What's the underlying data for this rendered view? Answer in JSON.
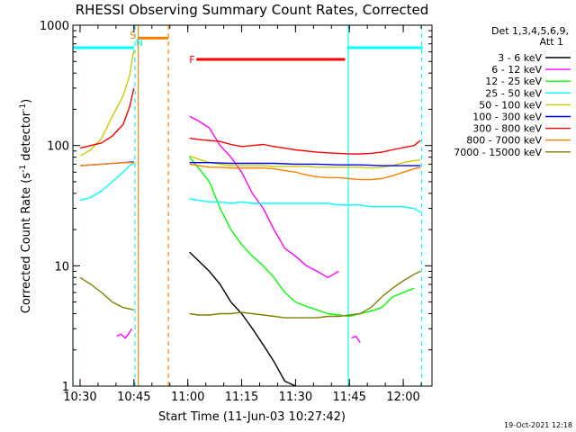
{
  "chart_data": {
    "type": "line",
    "title": "RHESSI Observing Summary Count Rates, Corrected",
    "xlabel": "Start Time (11-Jun-03 10:27:42)",
    "ylabel_main": "Corrected Count Rate (s",
    "ylabel_sup1": "-1",
    "ylabel_mid": " detector",
    "ylabel_sup2": "-1",
    "ylabel_end": ")",
    "y_scale": "log",
    "ylim": [
      1,
      1000
    ],
    "xlim_minutes": [
      10.4667,
      12.1333
    ],
    "y_ticks": [
      {
        "v": 1,
        "label": "1"
      },
      {
        "v": 10,
        "label": "10"
      },
      {
        "v": 100,
        "label": "100"
      },
      {
        "v": 1000,
        "label": "1000"
      }
    ],
    "x_ticks": [
      {
        "v": 10.5,
        "label": "10:30"
      },
      {
        "v": 10.75,
        "label": "10:45"
      },
      {
        "v": 11.0,
        "label": "11:00"
      },
      {
        "v": 11.25,
        "label": "11:15"
      },
      {
        "v": 11.5,
        "label": "11:30"
      },
      {
        "v": 11.75,
        "label": "11:45"
      },
      {
        "v": 12.0,
        "label": "12:00"
      }
    ],
    "legend_header": [
      "Det 1,3,4,5,6,9,",
      "Att 1"
    ],
    "legend_placement": "right",
    "series": [
      {
        "name": "3 - 6 keV",
        "color": "#000000",
        "points": [
          [
            11.008,
            13
          ],
          [
            11.05,
            11
          ],
          [
            11.1,
            9
          ],
          [
            11.15,
            7
          ],
          [
            11.2,
            5
          ],
          [
            11.25,
            4
          ],
          [
            11.3,
            3
          ],
          [
            11.35,
            2.2
          ],
          [
            11.4,
            1.6
          ],
          [
            11.45,
            1.1
          ],
          [
            11.5,
            1.0
          ]
        ]
      },
      {
        "name": "6 - 12 keV",
        "color": "#ff00ff",
        "points": [
          [
            10.67,
            2.6
          ],
          [
            10.69,
            2.7
          ],
          [
            10.71,
            2.5
          ],
          [
            10.73,
            2.8
          ],
          [
            10.74,
            3.0
          ],
          null,
          [
            11.008,
            175
          ],
          [
            11.05,
            160
          ],
          [
            11.1,
            140
          ],
          [
            11.15,
            100
          ],
          [
            11.2,
            80
          ],
          [
            11.25,
            60
          ],
          [
            11.3,
            40
          ],
          [
            11.35,
            30
          ],
          [
            11.4,
            20
          ],
          [
            11.45,
            14
          ],
          [
            11.5,
            12
          ],
          [
            11.55,
            10
          ],
          [
            11.6,
            9
          ],
          [
            11.65,
            8
          ],
          [
            11.7,
            9
          ],
          null,
          [
            11.76,
            2.5
          ],
          [
            11.78,
            2.6
          ],
          [
            11.8,
            2.3
          ]
        ]
      },
      {
        "name": "12 - 25 keV",
        "color": "#00ff00",
        "points": [
          [
            11.008,
            80
          ],
          [
            11.05,
            65
          ],
          [
            11.1,
            50
          ],
          [
            11.15,
            30
          ],
          [
            11.2,
            20
          ],
          [
            11.25,
            15
          ],
          [
            11.3,
            12
          ],
          [
            11.35,
            10
          ],
          [
            11.4,
            8
          ],
          [
            11.45,
            6
          ],
          [
            11.5,
            5
          ],
          [
            11.55,
            4.6
          ],
          [
            11.6,
            4.3
          ],
          [
            11.65,
            4.0
          ],
          [
            11.7,
            3.9
          ],
          [
            11.75,
            3.8
          ],
          [
            11.8,
            4.0
          ],
          [
            11.85,
            4.2
          ],
          [
            11.9,
            4.5
          ],
          [
            11.95,
            5.5
          ],
          [
            12.0,
            6.0
          ],
          [
            12.05,
            6.5
          ]
        ]
      },
      {
        "name": "25 - 50 keV",
        "color": "#00ffff",
        "points": [
          [
            10.5,
            35
          ],
          [
            10.55,
            37
          ],
          [
            10.6,
            42
          ],
          [
            10.65,
            50
          ],
          [
            10.7,
            60
          ],
          [
            10.73,
            68
          ],
          [
            10.75,
            72
          ],
          null,
          [
            11.008,
            36
          ],
          [
            11.05,
            35
          ],
          [
            11.1,
            34
          ],
          [
            11.15,
            34
          ],
          [
            11.2,
            33
          ],
          [
            11.25,
            34
          ],
          [
            11.3,
            33
          ],
          [
            11.35,
            33
          ],
          [
            11.4,
            33
          ],
          [
            11.45,
            33
          ],
          [
            11.5,
            33
          ],
          [
            11.55,
            33
          ],
          [
            11.6,
            33
          ],
          [
            11.65,
            33
          ],
          [
            11.7,
            32
          ],
          [
            11.75,
            32
          ],
          [
            11.8,
            32
          ],
          [
            11.85,
            31
          ],
          [
            11.9,
            31
          ],
          [
            11.95,
            31
          ],
          [
            12.0,
            31
          ],
          [
            12.05,
            30
          ],
          [
            12.08,
            28
          ]
        ]
      },
      {
        "name": "50 - 100 keV",
        "color": "#cccc00",
        "points": [
          [
            10.5,
            82
          ],
          [
            10.55,
            92
          ],
          [
            10.6,
            115
          ],
          [
            10.65,
            175
          ],
          [
            10.7,
            260
          ],
          [
            10.73,
            380
          ],
          [
            10.745,
            560
          ],
          [
            10.75,
            620
          ],
          null,
          [
            11.008,
            82
          ],
          [
            11.05,
            77
          ],
          [
            11.1,
            72
          ],
          [
            11.15,
            70
          ],
          [
            11.2,
            68
          ],
          [
            11.25,
            68
          ],
          [
            11.3,
            68
          ],
          [
            11.35,
            68
          ],
          [
            11.4,
            67
          ],
          [
            11.45,
            67
          ],
          [
            11.5,
            67
          ],
          [
            11.55,
            67
          ],
          [
            11.6,
            66
          ],
          [
            11.65,
            66
          ],
          [
            11.7,
            66
          ],
          [
            11.75,
            66
          ],
          [
            11.8,
            66
          ],
          [
            11.85,
            65
          ],
          [
            11.9,
            66
          ],
          [
            11.95,
            68
          ],
          [
            12.0,
            72
          ],
          [
            12.05,
            75
          ],
          [
            12.08,
            76
          ]
        ]
      },
      {
        "name": "100 - 300 keV",
        "color": "#0000ff",
        "points": [
          [
            10.5,
            68
          ],
          [
            10.6,
            70
          ],
          [
            10.7,
            72
          ],
          [
            10.75,
            73
          ],
          null,
          [
            11.008,
            72
          ],
          [
            11.05,
            72
          ],
          [
            11.1,
            72
          ],
          [
            11.2,
            71
          ],
          [
            11.3,
            71
          ],
          [
            11.4,
            71
          ],
          [
            11.5,
            70
          ],
          [
            11.6,
            70
          ],
          [
            11.7,
            69
          ],
          [
            11.8,
            69
          ],
          [
            11.9,
            68
          ],
          [
            12.0,
            68
          ],
          [
            12.08,
            68
          ]
        ]
      },
      {
        "name": "300 - 800 keV",
        "color": "#ff0000",
        "points": [
          [
            10.5,
            95
          ],
          [
            10.55,
            100
          ],
          [
            10.6,
            105
          ],
          [
            10.65,
            120
          ],
          [
            10.7,
            150
          ],
          [
            10.73,
            210
          ],
          [
            10.75,
            300
          ],
          null,
          [
            11.008,
            115
          ],
          [
            11.05,
            112
          ],
          [
            11.1,
            110
          ],
          [
            11.15,
            108
          ],
          [
            11.2,
            102
          ],
          [
            11.25,
            98
          ],
          [
            11.3,
            100
          ],
          [
            11.35,
            102
          ],
          [
            11.4,
            98
          ],
          [
            11.45,
            95
          ],
          [
            11.5,
            92
          ],
          [
            11.55,
            90
          ],
          [
            11.6,
            88
          ],
          [
            11.65,
            87
          ],
          [
            11.7,
            86
          ],
          [
            11.75,
            85
          ],
          [
            11.8,
            85
          ],
          [
            11.85,
            86
          ],
          [
            11.9,
            88
          ],
          [
            11.95,
            92
          ],
          [
            12.0,
            96
          ],
          [
            12.05,
            100
          ],
          [
            12.08,
            110
          ]
        ]
      },
      {
        "name": "800 - 7000 keV",
        "color": "#ff8000",
        "points": [
          [
            10.5,
            68
          ],
          [
            10.6,
            70
          ],
          [
            10.7,
            72
          ],
          [
            10.75,
            72
          ],
          null,
          [
            11.008,
            70
          ],
          [
            11.05,
            68
          ],
          [
            11.1,
            66
          ],
          [
            11.15,
            66
          ],
          [
            11.2,
            65
          ],
          [
            11.25,
            65
          ],
          [
            11.3,
            65
          ],
          [
            11.35,
            65
          ],
          [
            11.4,
            64
          ],
          [
            11.45,
            62
          ],
          [
            11.5,
            60
          ],
          [
            11.55,
            57
          ],
          [
            11.6,
            55
          ],
          [
            11.65,
            54
          ],
          [
            11.7,
            54
          ],
          [
            11.75,
            53
          ],
          [
            11.8,
            52
          ],
          [
            11.85,
            52
          ],
          [
            11.9,
            53
          ],
          [
            11.95,
            56
          ],
          [
            12.0,
            60
          ],
          [
            12.05,
            64
          ],
          [
            12.08,
            66
          ]
        ]
      },
      {
        "name": "7000 - 15000 keV",
        "color": "#808000",
        "points": [
          [
            10.5,
            8
          ],
          [
            10.55,
            7
          ],
          [
            10.6,
            6
          ],
          [
            10.65,
            5
          ],
          [
            10.7,
            4.5
          ],
          [
            10.75,
            4.3
          ],
          null,
          [
            11.008,
            4.0
          ],
          [
            11.05,
            3.9
          ],
          [
            11.1,
            3.9
          ],
          [
            11.15,
            4.0
          ],
          [
            11.2,
            4.0
          ],
          [
            11.25,
            4.1
          ],
          [
            11.3,
            4.0
          ],
          [
            11.35,
            3.9
          ],
          [
            11.4,
            3.8
          ],
          [
            11.45,
            3.7
          ],
          [
            11.5,
            3.7
          ],
          [
            11.55,
            3.7
          ],
          [
            11.6,
            3.7
          ],
          [
            11.65,
            3.8
          ],
          [
            11.7,
            3.8
          ],
          [
            11.75,
            3.9
          ],
          [
            11.8,
            4.0
          ],
          [
            11.85,
            4.5
          ],
          [
            11.9,
            5.5
          ],
          [
            11.95,
            6.5
          ],
          [
            12.0,
            7.5
          ],
          [
            12.05,
            8.5
          ],
          [
            12.08,
            9
          ]
        ]
      }
    ],
    "flag_bars": [
      {
        "color": "#00ffff",
        "y": 650,
        "x": [
          10.4667,
          10.75
        ]
      },
      {
        "color": "#ff8000",
        "y": 780,
        "x": [
          10.77,
          10.91
        ]
      },
      {
        "color": "#ff0000",
        "y": 520,
        "x": [
          11.04,
          11.73
        ]
      },
      {
        "color": "#00ffff",
        "y": 650,
        "x": [
          11.74,
          12.09
        ]
      }
    ],
    "flag_labels": [
      {
        "text": "S",
        "color": "#ff8000",
        "x": 10.745,
        "y": 830
      },
      {
        "text": "N",
        "color": "#00ffff",
        "x": 10.775,
        "y": 720
      },
      {
        "text": "F",
        "color": "#ff0000",
        "x": 11.02,
        "y": 520
      }
    ],
    "vlines": [
      {
        "x": 10.4667,
        "color": "#00ffff",
        "dash": false
      },
      {
        "x": 10.755,
        "color": "#00ffff",
        "dash": true
      },
      {
        "x": 10.77,
        "color": "#ff8000",
        "dash": false
      },
      {
        "x": 10.91,
        "color": "#ff8000",
        "dash": true
      },
      {
        "x": 11.745,
        "color": "#00ffff",
        "dash": false
      },
      {
        "x": 12.085,
        "color": "#00ffff",
        "dash": true
      }
    ],
    "footer_date": "19-Oct-2021 12:18"
  }
}
